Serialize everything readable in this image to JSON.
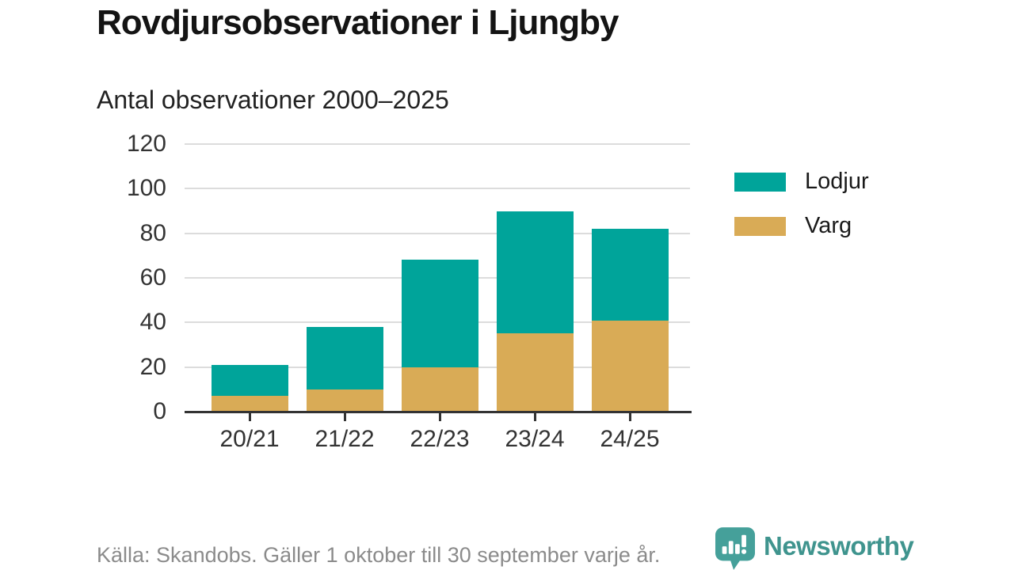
{
  "header": {
    "title": "Rovdjursobservationer i Ljungby",
    "subtitle": "Antal observationer 2000–2025"
  },
  "footer": {
    "source_note": "Källa: Skandobs. Gäller 1 oktober till 30 september varje år.",
    "brand_name": "Newsworthy"
  },
  "colors": {
    "lodjur": "#00a49a",
    "varg": "#d9ab56",
    "grid": "#dcdcdc",
    "axis": "#333333",
    "brand": "#3f948e",
    "footer_text": "#8b8b8b"
  },
  "chart_data": {
    "type": "bar",
    "stacked": true,
    "title": "Rovdjursobservationer i Ljungby",
    "subtitle": "Antal observationer 2000–2025",
    "categories": [
      "20/21",
      "21/22",
      "22/23",
      "23/24",
      "24/25"
    ],
    "series": [
      {
        "name": "Lodjur",
        "color": "#00a49a",
        "values": [
          14,
          28,
          48,
          55,
          41
        ]
      },
      {
        "name": "Varg",
        "color": "#d9ab56",
        "values": [
          7,
          10,
          20,
          35,
          41
        ]
      }
    ],
    "totals": [
      21,
      38,
      68,
      90,
      82
    ],
    "xlabel": "",
    "ylabel": "",
    "ylim": [
      0,
      120
    ],
    "yticks": [
      0,
      20,
      40,
      60,
      80,
      100,
      120
    ],
    "grid": "horizontal",
    "legend_position": "right"
  }
}
